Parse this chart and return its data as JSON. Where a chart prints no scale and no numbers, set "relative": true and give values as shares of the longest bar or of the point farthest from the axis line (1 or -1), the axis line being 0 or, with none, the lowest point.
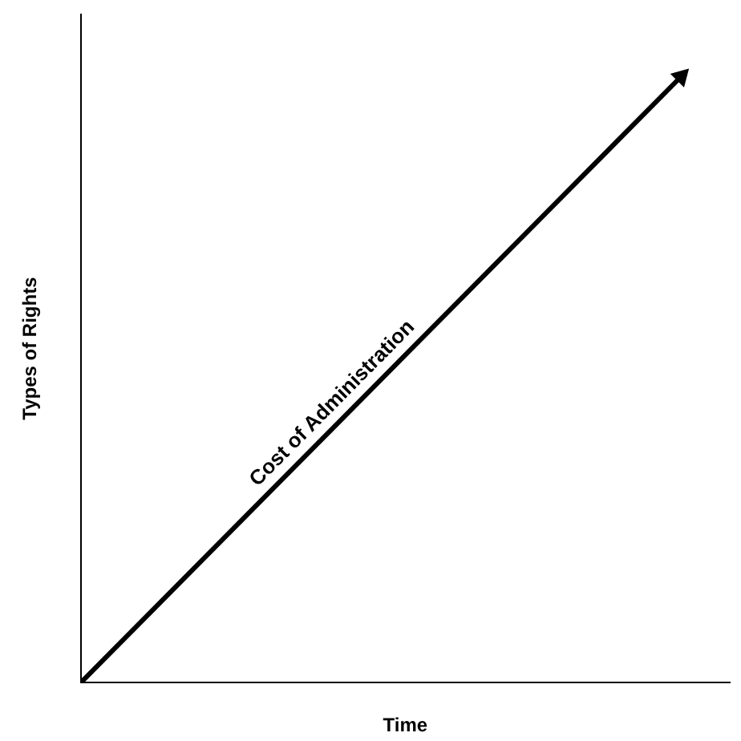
{
  "chart_data": {
    "type": "line",
    "xlabel": "Time",
    "ylabel": "Types of Rights",
    "categories": [
      null,
      null
    ],
    "series": [
      {
        "color": "#000000",
        "values": [
          0,
          1
        ]
      }
    ],
    "relative": true,
    "line_style": "solid",
    "grid": false,
    "legend": false,
    "annotations": [
      "Cost of Administration"
    ]
  }
}
